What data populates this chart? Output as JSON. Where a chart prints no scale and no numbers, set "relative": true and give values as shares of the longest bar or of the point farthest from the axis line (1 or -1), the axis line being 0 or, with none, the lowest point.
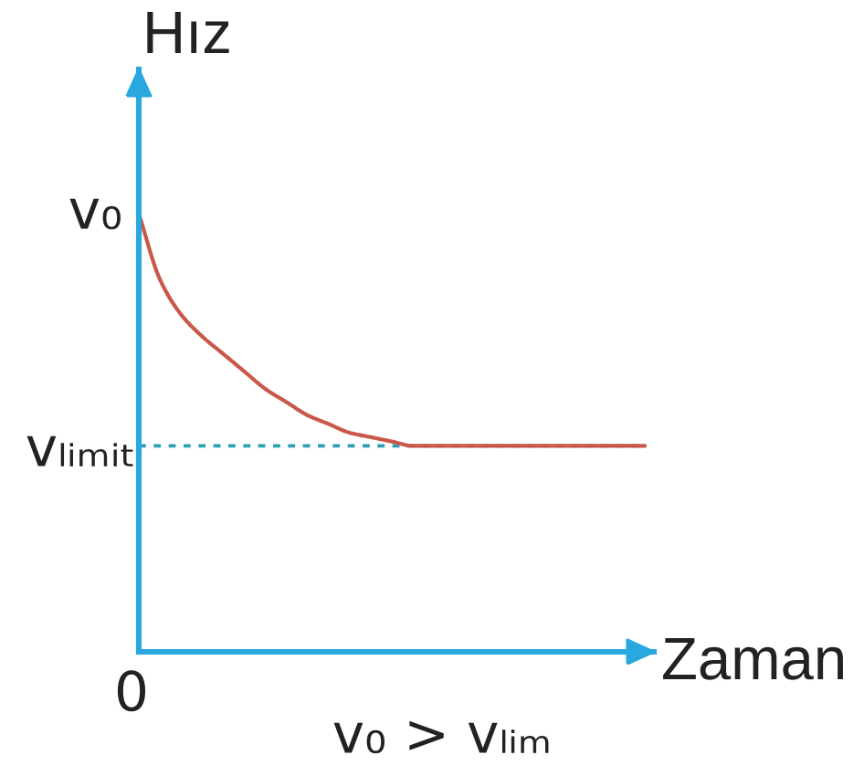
{
  "chart_data": {
    "type": "line",
    "relative": true,
    "ylabel": "Hız",
    "xlabel": "Zaman",
    "categories": [
      null,
      null,
      null,
      null,
      null,
      null,
      null,
      null,
      null,
      null,
      null,
      null,
      null,
      null,
      null,
      null,
      null,
      null,
      null,
      null,
      null,
      null,
      null,
      null,
      null
    ],
    "series": [
      {
        "color": "#c9574a",
        "values": [
          1.0,
          0.85,
          0.77,
          0.72,
          0.68,
          0.64,
          0.6,
          0.57,
          0.54,
          0.52,
          0.5,
          0.49,
          0.48,
          0.47,
          0.47,
          0.47,
          0.47,
          0.47,
          0.47,
          0.47,
          0.47,
          0.47,
          0.47,
          0.47,
          0.47
        ]
      }
    ],
    "ref_lines": [
      {
        "axis": "y",
        "value": 0.47,
        "label": "vₗᵢₘᵢₜ",
        "color": "#2a9fb5",
        "line_style": "dotted"
      }
    ],
    "annotations": [
      "v₀",
      "0",
      "v₀ > vₗᵢₘ"
    ]
  }
}
